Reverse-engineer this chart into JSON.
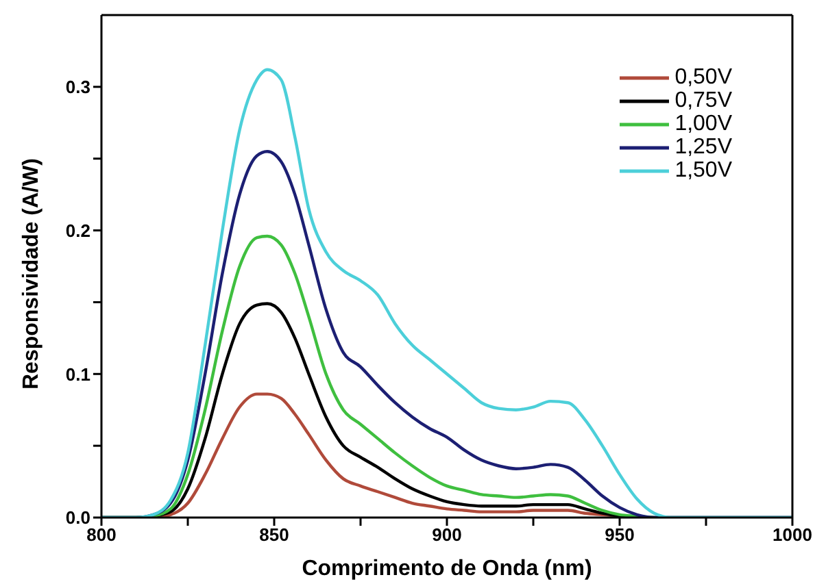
{
  "chart_data": {
    "type": "line",
    "xlabel": "Comprimento de Onda (nm)",
    "ylabel": "Responsividade (A/W)",
    "x": [
      800,
      810,
      815,
      820,
      825,
      830,
      835,
      840,
      845,
      848,
      852,
      856,
      860,
      865,
      870,
      875,
      880,
      885,
      890,
      895,
      900,
      905,
      910,
      915,
      920,
      925,
      930,
      935,
      940,
      945,
      950,
      955,
      960,
      965,
      1000
    ],
    "series": [
      {
        "name": "0,50V",
        "color": "#b04a3a",
        "values": [
          0,
          0,
          0,
          0.002,
          0.01,
          0.03,
          0.055,
          0.077,
          0.086,
          0.086,
          0.083,
          0.072,
          0.058,
          0.04,
          0.027,
          0.022,
          0.018,
          0.014,
          0.01,
          0.008,
          0.006,
          0.005,
          0.004,
          0.004,
          0.004,
          0.005,
          0.005,
          0.005,
          0.003,
          0.002,
          0.001,
          null,
          null,
          null,
          null
        ]
      },
      {
        "name": "0,75V",
        "color": "#000000",
        "values": [
          0,
          0,
          0.001,
          0.004,
          0.02,
          0.055,
          0.1,
          0.135,
          0.148,
          0.149,
          0.143,
          0.125,
          0.1,
          0.07,
          0.05,
          0.042,
          0.035,
          0.027,
          0.02,
          0.015,
          0.011,
          0.009,
          0.008,
          0.008,
          0.008,
          0.009,
          0.009,
          0.009,
          0.006,
          0.003,
          0.001,
          0,
          0,
          0,
          0
        ]
      },
      {
        "name": "1,00V",
        "color": "#3fbf3f",
        "values": [
          0,
          0,
          0.001,
          0.006,
          0.03,
          0.075,
          0.13,
          0.175,
          0.195,
          0.196,
          0.19,
          0.17,
          0.14,
          0.1,
          0.075,
          0.065,
          0.055,
          0.045,
          0.036,
          0.028,
          0.022,
          0.019,
          0.016,
          0.015,
          0.014,
          0.015,
          0.016,
          0.015,
          0.01,
          0.005,
          0.002,
          0.001,
          0,
          null,
          null
        ]
      },
      {
        "name": "1,25V",
        "color": "#1c1f73",
        "values": [
          0,
          0,
          0.002,
          0.01,
          0.04,
          0.1,
          0.17,
          0.225,
          0.252,
          0.255,
          0.248,
          0.225,
          0.19,
          0.145,
          0.115,
          0.105,
          0.092,
          0.08,
          0.07,
          0.062,
          0.056,
          0.047,
          0.04,
          0.036,
          0.034,
          0.035,
          0.037,
          0.035,
          0.026,
          0.015,
          0.007,
          0.002,
          0,
          0,
          0
        ]
      },
      {
        "name": "1,50V",
        "color": "#4ccfd9",
        "values": [
          0,
          0,
          0.002,
          0.012,
          0.045,
          0.12,
          0.2,
          0.27,
          0.305,
          0.312,
          0.305,
          0.265,
          0.215,
          0.185,
          0.172,
          0.165,
          0.155,
          0.135,
          0.12,
          0.11,
          0.1,
          0.09,
          0.08,
          0.076,
          0.075,
          0.077,
          0.081,
          0.08,
          0.068,
          0.05,
          0.03,
          0.013,
          0.003,
          0,
          0
        ]
      }
    ],
    "xlim": [
      800,
      1000
    ],
    "xticks": [
      800,
      {
        "value": 825,
        "label": null
      },
      850,
      {
        "value": 875,
        "label": null
      },
      900,
      {
        "value": 925,
        "label": null
      },
      950,
      {
        "value": 975,
        "label": null
      },
      1000
    ],
    "ylim": [
      0,
      0.35
    ],
    "yticks": [
      {
        "value": 0,
        "label": "0.0"
      },
      {
        "value": 0.05,
        "label": null
      },
      {
        "value": 0.1,
        "label": "0.1"
      },
      {
        "value": 0.15,
        "label": null
      },
      {
        "value": 0.2,
        "label": "0.2"
      },
      {
        "value": 0.25,
        "label": null
      },
      {
        "value": 0.3,
        "label": "0.3"
      }
    ],
    "legend": "top right",
    "marker": "none",
    "line_style": "solid"
  }
}
